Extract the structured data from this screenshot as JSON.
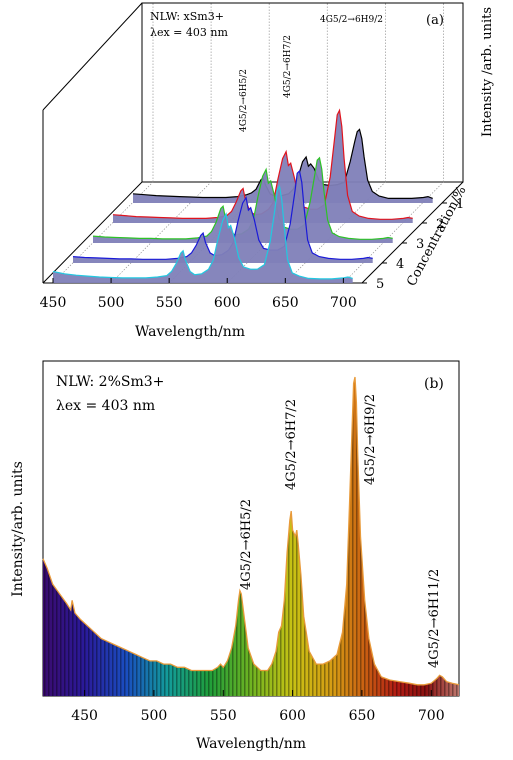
{
  "chart_data": [
    {
      "panel": "(a)",
      "type": "line",
      "style": "3d-waterfall",
      "annotation_line1": "NLW: xSm3+",
      "annotation_line2": "λex = 403 nm",
      "xlabel": "Wavelength/nm",
      "ylabel": "Intensity /arb. units",
      "zlabel": "Concentration/%",
      "xlim": [
        450,
        710
      ],
      "xticks": [
        "450",
        "500",
        "550",
        "600",
        "650",
        "700"
      ],
      "zticks": [
        "1",
        "2",
        "3",
        "4",
        "5"
      ],
      "peak_labels": [
        {
          "text": "4G5/2→6H5/2",
          "x": 562
        },
        {
          "text": "4G5/2→6H7/2",
          "x": 599
        },
        {
          "text": "4G5/2→6H9/2",
          "x": 645
        }
      ],
      "x": [
        450,
        460,
        470,
        480,
        490,
        500,
        510,
        520,
        530,
        540,
        548,
        552,
        556,
        560,
        562,
        564,
        568,
        572,
        578,
        584,
        588,
        592,
        596,
        599,
        601,
        603,
        606,
        610,
        614,
        620,
        626,
        632,
        637,
        641,
        643,
        645,
        647,
        649,
        652,
        656,
        662,
        670,
        680,
        690,
        700,
        704,
        708
      ],
      "series": [
        {
          "name": "1",
          "color": "#000000",
          "values": [
            0.2,
            0.18,
            0.16,
            0.15,
            0.14,
            0.13,
            0.12,
            0.12,
            0.12,
            0.14,
            0.18,
            0.22,
            0.3,
            0.5,
            0.55,
            0.4,
            0.2,
            0.15,
            0.16,
            0.2,
            0.3,
            0.55,
            0.9,
            1.0,
            0.8,
            0.85,
            0.75,
            0.5,
            0.4,
            0.38,
            0.4,
            0.45,
            0.9,
            1.35,
            1.55,
            1.6,
            1.4,
            1.0,
            0.5,
            0.25,
            0.15,
            0.1,
            0.1,
            0.1,
            0.12,
            0.14,
            0.1
          ]
        },
        {
          "name": "2",
          "color": "#e0141e",
          "values": [
            0.18,
            0.16,
            0.14,
            0.13,
            0.12,
            0.11,
            0.1,
            0.1,
            0.1,
            0.12,
            0.16,
            0.25,
            0.45,
            0.7,
            0.75,
            0.5,
            0.25,
            0.18,
            0.2,
            0.3,
            0.45,
            0.95,
            1.4,
            1.55,
            1.25,
            1.3,
            1.0,
            0.55,
            0.35,
            0.3,
            0.3,
            0.4,
            1.0,
            1.9,
            2.35,
            2.45,
            2.1,
            1.4,
            0.6,
            0.25,
            0.15,
            0.1,
            0.08,
            0.08,
            0.1,
            0.12,
            0.1
          ]
        },
        {
          "name": "3",
          "color": "#2ec227",
          "values": [
            0.15,
            0.13,
            0.12,
            0.11,
            0.1,
            0.1,
            0.09,
            0.09,
            0.09,
            0.11,
            0.15,
            0.25,
            0.45,
            0.75,
            0.8,
            0.55,
            0.25,
            0.18,
            0.2,
            0.3,
            0.5,
            1.0,
            1.45,
            1.6,
            1.3,
            1.35,
            1.05,
            0.55,
            0.35,
            0.3,
            0.3,
            0.4,
            0.9,
            1.5,
            1.8,
            1.85,
            1.6,
            1.1,
            0.5,
            0.22,
            0.14,
            0.1,
            0.08,
            0.08,
            0.1,
            0.12,
            0.1
          ]
        },
        {
          "name": "4",
          "color": "#1a1ad8",
          "values": [
            0.14,
            0.12,
            0.11,
            0.1,
            0.09,
            0.09,
            0.08,
            0.08,
            0.08,
            0.1,
            0.14,
            0.22,
            0.38,
            0.6,
            0.65,
            0.45,
            0.22,
            0.16,
            0.18,
            0.28,
            0.45,
            0.9,
            1.3,
            1.42,
            1.15,
            1.2,
            0.95,
            0.5,
            0.32,
            0.28,
            0.28,
            0.36,
            0.85,
            1.55,
            1.95,
            2.0,
            1.75,
            1.2,
            0.5,
            0.22,
            0.14,
            0.1,
            0.08,
            0.08,
            0.1,
            0.12,
            0.1
          ]
        },
        {
          "name": "5",
          "color": "#22c8e0",
          "values": [
            0.25,
            0.2,
            0.17,
            0.15,
            0.13,
            0.12,
            0.11,
            0.11,
            0.11,
            0.13,
            0.16,
            0.25,
            0.42,
            0.65,
            0.7,
            0.5,
            0.25,
            0.18,
            0.2,
            0.3,
            0.5,
            0.95,
            1.35,
            1.5,
            1.2,
            1.25,
            1.0,
            0.55,
            0.35,
            0.3,
            0.3,
            0.4,
            0.9,
            1.6,
            2.0,
            2.1,
            1.8,
            1.25,
            0.5,
            0.22,
            0.15,
            0.1,
            0.09,
            0.09,
            0.11,
            0.13,
            0.1
          ]
        }
      ]
    },
    {
      "panel": "(b)",
      "type": "area",
      "style": "spectrum-gradient-fill",
      "annotation_line1": "NLW: 2%Sm3+",
      "annotation_line2": "λex = 403 nm",
      "xlabel": "Wavelength/nm",
      "ylabel": "Intensity/arb. units",
      "xlim": [
        420,
        720
      ],
      "ylim": [
        0,
        1.05
      ],
      "xticks": [
        "450",
        "500",
        "550",
        "600",
        "650",
        "700"
      ],
      "peak_labels": [
        {
          "text": "4G5/2→6H5/2",
          "x": 562
        },
        {
          "text": "4G5/2→6H7/2",
          "x": 599
        },
        {
          "text": "4G5/2→6H9/2",
          "x": 645
        },
        {
          "text": "4G5/2→6H11/2",
          "x": 706
        }
      ],
      "x": [
        420,
        423,
        427,
        432,
        437,
        440,
        441,
        443,
        447,
        452,
        457,
        462,
        467,
        472,
        477,
        482,
        487,
        492,
        497,
        502,
        507,
        512,
        517,
        522,
        527,
        532,
        537,
        542,
        546,
        548,
        550,
        553,
        556,
        559,
        561,
        562,
        563,
        565,
        568,
        572,
        577,
        582,
        585,
        588,
        590,
        592,
        594,
        596,
        598,
        599,
        600,
        602,
        603,
        604,
        606,
        608,
        612,
        617,
        622,
        627,
        632,
        636,
        639,
        641,
        643,
        644,
        645,
        646,
        647,
        649,
        652,
        655,
        659,
        664,
        670,
        677,
        684,
        690,
        695,
        700,
        704,
        706,
        708,
        711,
        715,
        720
      ],
      "values": [
        0.43,
        0.4,
        0.35,
        0.32,
        0.29,
        0.27,
        0.3,
        0.26,
        0.24,
        0.22,
        0.2,
        0.18,
        0.17,
        0.16,
        0.15,
        0.14,
        0.13,
        0.12,
        0.11,
        0.11,
        0.1,
        0.1,
        0.09,
        0.09,
        0.08,
        0.08,
        0.08,
        0.08,
        0.09,
        0.1,
        0.09,
        0.11,
        0.15,
        0.22,
        0.3,
        0.33,
        0.32,
        0.25,
        0.15,
        0.1,
        0.08,
        0.08,
        0.1,
        0.14,
        0.2,
        0.22,
        0.3,
        0.45,
        0.55,
        0.58,
        0.52,
        0.5,
        0.52,
        0.48,
        0.38,
        0.25,
        0.14,
        0.1,
        0.1,
        0.11,
        0.13,
        0.2,
        0.35,
        0.6,
        0.85,
        0.98,
        1.0,
        0.92,
        0.75,
        0.5,
        0.3,
        0.18,
        0.1,
        0.06,
        0.05,
        0.045,
        0.04,
        0.035,
        0.035,
        0.04,
        0.055,
        0.065,
        0.06,
        0.045,
        0.04,
        0.035
      ]
    }
  ]
}
